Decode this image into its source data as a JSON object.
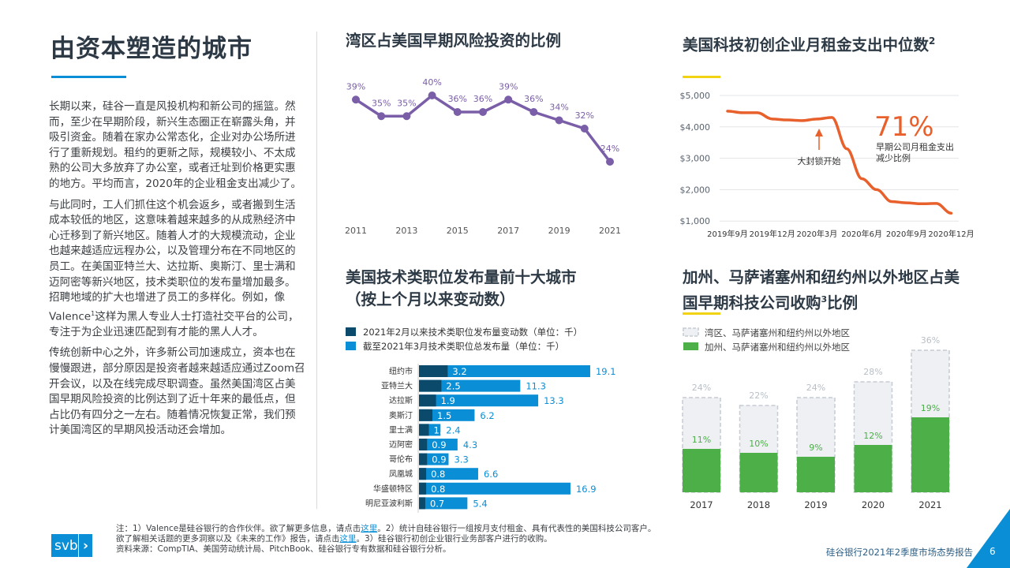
{
  "title": "由资本塑造的城市",
  "body": {
    "p1": "长期以来，硅谷一直是风投机构和新公司的摇篮。然而，至少在早期阶段，新兴生态圈正在崭露头角，并吸引资金。随着在家办公常态化，企业对办公场所进行了重新规划。租约的更新之际，规模较小、不太成熟的公司大多放弃了办公室，或者迁址到价格更实惠的地方。平均而言，2020年的企业租金支出减少了。",
    "p2a": "与此同时，工人们抓住这个机会返乡，或者搬到生活成本较低的地区，这意味着越来越多的从成熟经济中心迁移到了新兴地区。随着人才的大规模流动，企业也越来越适应远程办公，以及管理分布在不同地区的员工。在美国亚特兰大、达拉斯、奥斯汀、里士满和迈阿密等新兴地区，技术类职位的发布量增加最多。招聘地域的扩大也增进了员工的多样化。例如，像Valence",
    "p2sup": "1",
    "p2b": "这样为黑人专业人士打造社交平台的公司，专注于为企业迅速匹配到有才能的黑人人才。",
    "p3": "传统创新中心之外，许多新公司加速成立，资本也在慢慢跟进，部分原因是投资者越来越适应通过Zoom召开会议，以及在线完成尽职调查。虽然美国湾区占美国早期风险投资的比例达到了近十年来的最低点，但占比仍有四分之一左右。随着情况恢复正常，我们预计美国湾区的早期风投活动还会增加。"
  },
  "colors": {
    "accent_blue": "#0a8fd6",
    "yellow": "#f2d313",
    "purple": "#7a5ea8",
    "orange": "#e8602c",
    "dark_bar": "#0b4a6b",
    "green": "#4caf48"
  },
  "chart_data": [
    {
      "type": "line",
      "title": "湾区占美国早期风险投资的比例",
      "x": [
        2011,
        2012,
        2013,
        2014,
        2015,
        2016,
        2017,
        2018,
        2019,
        2020,
        2021
      ],
      "x_tick_labels": [
        "2011",
        "2013",
        "2015",
        "2017",
        "2019",
        "2021"
      ],
      "values": [
        39,
        35,
        35,
        40,
        36,
        36,
        39,
        36,
        34,
        32,
        24
      ],
      "data_labels": [
        "39%",
        "35%",
        "35%",
        "40%",
        "36%",
        "36%",
        "39%",
        "36%",
        "34%",
        "32%",
        "24%"
      ],
      "unit": "%"
    },
    {
      "type": "line",
      "title": "美国科技初创企业月租金支出中位数",
      "title_sup": "2",
      "x": [
        "2019-09",
        "2019-10",
        "2019-11",
        "2019-12",
        "2020-01",
        "2020-02",
        "2020-03",
        "2020-04",
        "2020-05",
        "2020-06",
        "2020-07",
        "2020-08",
        "2020-09",
        "2020-10",
        "2020-11",
        "2020-12"
      ],
      "values": [
        4500,
        4450,
        4450,
        4250,
        4220,
        4200,
        4250,
        4300,
        3300,
        2350,
        2000,
        1620,
        1580,
        1550,
        1560,
        1250
      ],
      "y_tick_labels": [
        "$5,000",
        "$4,000",
        "$3,000",
        "$2,000",
        "$1,000"
      ],
      "ylim": [
        1000,
        5000
      ],
      "x_tick_labels": [
        "2019年9月",
        "2019年12月",
        "2020年3月",
        "2020年6月",
        "2020年9月",
        "2020年12月"
      ],
      "annotation_arrow": "大封锁开始",
      "callout_value": "71%",
      "callout_text_1": "早期公司月租金支出",
      "callout_text_2": "减少比例",
      "grid": true
    },
    {
      "type": "bar",
      "title_1": "美国技术类职位发布量前十大城市",
      "title_2": "（按上个月以来变动数）",
      "categories": [
        "纽约市",
        "亚特兰大",
        "达拉斯",
        "奥斯汀",
        "里士满",
        "迈阿密",
        "哥伦布",
        "凤凰城",
        "华盛顿特区",
        "明尼亚波利斯"
      ],
      "series": [
        {
          "name": "2021年2月以来技术类职位发布量变动数（单位：千）",
          "values": [
            3.2,
            2.5,
            1.9,
            1.5,
            1.1,
            0.9,
            0.9,
            0.8,
            0.8,
            0.7
          ]
        },
        {
          "name": "截至2021年3月技术类职位总发布量（单位：千）",
          "values": [
            19.1,
            11.3,
            13.3,
            6.2,
            2.4,
            4.3,
            3.3,
            6.6,
            16.9,
            5.4
          ]
        }
      ],
      "legend": "top-left"
    },
    {
      "type": "bar",
      "title_1": "加州、马萨诸塞州和纽约州以外地区占美",
      "title_2a": "国早期科技公司收购",
      "title_sup": "3",
      "title_2b": "比例",
      "categories": [
        "2017",
        "2018",
        "2019",
        "2020",
        "2021"
      ],
      "series": [
        {
          "name": "湾区、马萨诸塞州和纽约州以外地区",
          "values": [
            24,
            22,
            24,
            28,
            36
          ],
          "labels": [
            "24%",
            "22%",
            "24%",
            "28%",
            "36%"
          ]
        },
        {
          "name": "加州、马萨诸塞州和纽约州以外地区",
          "values": [
            11,
            10,
            9,
            12,
            19
          ],
          "labels": [
            "11%",
            "10%",
            "9%",
            "12%",
            "19%"
          ]
        }
      ],
      "legend": "top-left"
    }
  ],
  "footer": {
    "logo": "svb",
    "note1_a": "注：1）Valence是硅谷银行的合作伙伴。欲了解更多信息，请点击",
    "link": "这里",
    "note1_b": "。2）统计自硅谷银行一组按月支付租金、具有代表性的美国科技公司客户。",
    "note2_a": "欲了解相关话题的更多洞察以及《未来的工作》报告，请点击",
    "note2_b": "。3）硅谷银行初创企业银行业务部客户进行的收购。",
    "note3": "资料来源：CompTIA、美国劳动统计局、PitchBook、硅谷银行专有数据和硅谷银行分析。",
    "report_name": "硅谷银行2021年2季度市场态势报告",
    "page_number": "6"
  }
}
